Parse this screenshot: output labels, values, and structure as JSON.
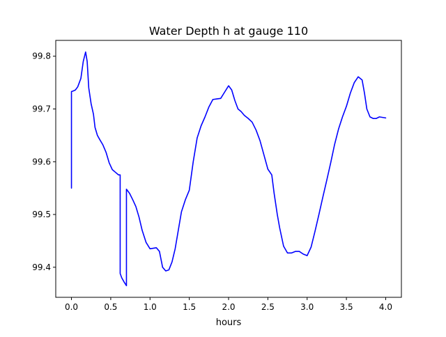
{
  "chart_data": {
    "type": "line",
    "title": "Water Depth h at gauge 110",
    "xlabel": "hours",
    "ylabel": "",
    "xlim": [
      -0.2,
      4.2
    ],
    "ylim": [
      99.343,
      99.83
    ],
    "xticks": [
      0.0,
      0.5,
      1.0,
      1.5,
      2.0,
      2.5,
      3.0,
      3.5,
      4.0
    ],
    "xtick_labels": [
      "0.0",
      "0.5",
      "1.0",
      "1.5",
      "2.0",
      "2.5",
      "3.0",
      "3.5",
      "4.0"
    ],
    "yticks": [
      99.4,
      99.5,
      99.6,
      99.7,
      99.8
    ],
    "ytick_labels": [
      "99.4",
      "99.5",
      "99.6",
      "99.7",
      "99.8"
    ],
    "grid": false,
    "series": [
      {
        "color": "#0000ff",
        "x": [
          0.0,
          0.0,
          0.02,
          0.05,
          0.08,
          0.12,
          0.15,
          0.18,
          0.2,
          0.22,
          0.25,
          0.28,
          0.3,
          0.33,
          0.36,
          0.4,
          0.44,
          0.48,
          0.52,
          0.56,
          0.6,
          0.62,
          0.62,
          0.64,
          0.67,
          0.7,
          0.7,
          0.7,
          0.74,
          0.78,
          0.82,
          0.86,
          0.9,
          0.95,
          1.0,
          1.04,
          1.08,
          1.12,
          1.16,
          1.2,
          1.24,
          1.28,
          1.32,
          1.36,
          1.4,
          1.45,
          1.5,
          1.55,
          1.6,
          1.65,
          1.7,
          1.75,
          1.8,
          1.85,
          1.9,
          1.95,
          2.0,
          2.04,
          2.08,
          2.12,
          2.16,
          2.2,
          2.25,
          2.3,
          2.35,
          2.4,
          2.45,
          2.5,
          2.55,
          2.58,
          2.6,
          2.62,
          2.65,
          2.7,
          2.75,
          2.8,
          2.85,
          2.9,
          2.95,
          3.0,
          3.05,
          3.1,
          3.15,
          3.2,
          3.25,
          3.3,
          3.35,
          3.4,
          3.45,
          3.5,
          3.55,
          3.6,
          3.65,
          3.7,
          3.73,
          3.76,
          3.8,
          3.84,
          3.88,
          3.92,
          3.96,
          4.0
        ],
        "y": [
          99.55,
          99.733,
          99.734,
          99.736,
          99.742,
          99.758,
          99.79,
          99.808,
          99.79,
          99.74,
          99.71,
          99.69,
          99.665,
          99.65,
          99.642,
          99.632,
          99.618,
          99.598,
          99.585,
          99.58,
          99.575,
          99.575,
          99.388,
          99.38,
          99.372,
          99.365,
          99.365,
          99.548,
          99.54,
          99.528,
          99.515,
          99.495,
          99.47,
          99.447,
          99.435,
          99.436,
          99.437,
          99.43,
          99.4,
          99.393,
          99.395,
          99.41,
          99.435,
          99.47,
          99.505,
          99.528,
          99.546,
          99.6,
          99.645,
          99.668,
          99.685,
          99.704,
          99.718,
          99.719,
          99.72,
          99.732,
          99.744,
          99.736,
          99.716,
          99.7,
          99.695,
          99.688,
          99.682,
          99.675,
          99.66,
          99.64,
          99.613,
          99.586,
          99.575,
          99.54,
          99.52,
          99.5,
          99.475,
          99.44,
          99.427,
          99.427,
          99.43,
          99.43,
          99.425,
          99.422,
          99.438,
          99.468,
          99.5,
          99.533,
          99.565,
          99.598,
          99.633,
          99.662,
          99.685,
          99.705,
          99.73,
          99.75,
          99.761,
          99.755,
          99.73,
          99.7,
          99.685,
          99.682,
          99.682,
          99.685,
          99.684,
          99.683
        ]
      }
    ]
  }
}
